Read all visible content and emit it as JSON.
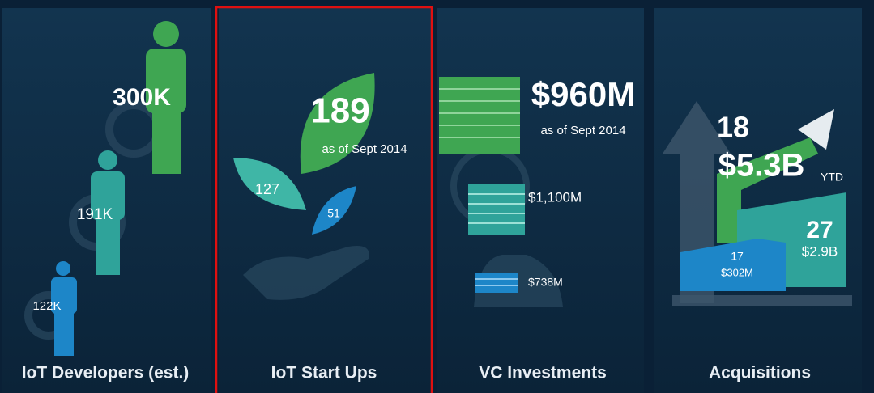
{
  "panels": [
    {
      "title": "IoT Developers (est.)",
      "labels": [
        "300K",
        "191K",
        "122K"
      ]
    },
    {
      "title": "IoT Start Ups",
      "labels": [
        "189",
        "as of Sept 2014",
        "127",
        "51"
      ]
    },
    {
      "title": "VC Investments",
      "labels": [
        "$960M",
        "as of Sept 2014",
        "$1,100M",
        "$738M"
      ]
    },
    {
      "title": "Acquisitions",
      "labels": [
        "18",
        "$5.3B",
        "YTD",
        "27",
        "$2.9B",
        "17",
        "$302M"
      ]
    }
  ]
}
